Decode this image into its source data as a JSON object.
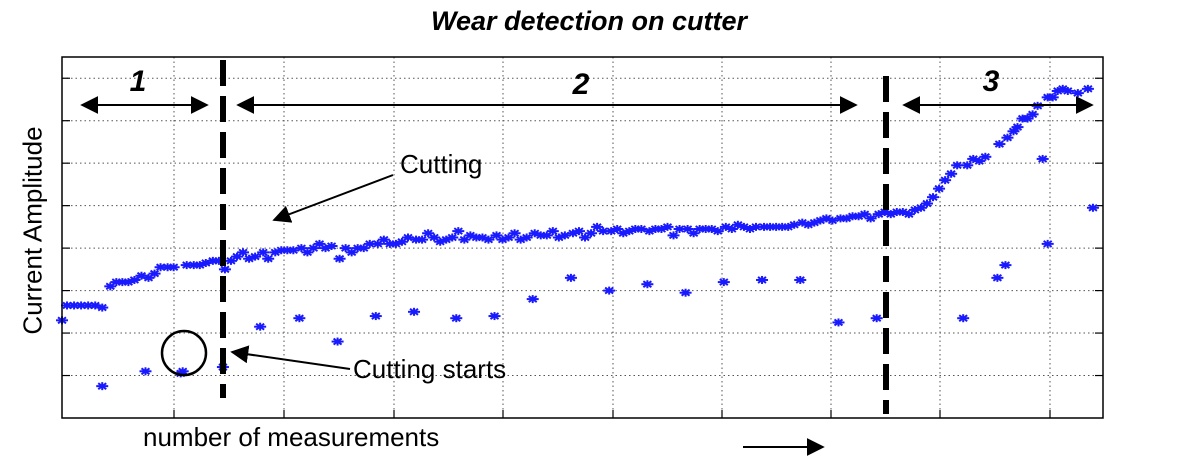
{
  "chart_data": {
    "type": "scatter",
    "title": "Wear detection on cutter",
    "xlabel": "number of measurements",
    "ylabel": "Current Amplitude",
    "xlim": [
      0,
      1035
    ],
    "ylim": [
      0,
      8.5
    ],
    "grid": true,
    "marker_color": "#1a1aff",
    "series": [
      {
        "values": [
          [
            0,
            2.3
          ],
          [
            5,
            2.65
          ],
          [
            12,
            2.65
          ],
          [
            19,
            2.65
          ],
          [
            26,
            2.65
          ],
          [
            33,
            2.65
          ],
          [
            40,
            2.6
          ],
          [
            40,
            0.75
          ],
          [
            48,
            3.1
          ],
          [
            54,
            3.2
          ],
          [
            60,
            3.2
          ],
          [
            66,
            3.2
          ],
          [
            72,
            3.25
          ],
          [
            79,
            3.35
          ],
          [
            83,
            1.1
          ],
          [
            86,
            3.3
          ],
          [
            92,
            3.4
          ],
          [
            98,
            3.55
          ],
          [
            105,
            3.55
          ],
          [
            111,
            3.55
          ],
          [
            118,
            1.05
          ],
          [
            120,
            1.1
          ],
          [
            124,
            3.6
          ],
          [
            131,
            3.6
          ],
          [
            137,
            3.6
          ],
          [
            143,
            3.65
          ],
          [
            150,
            3.7
          ],
          [
            156,
            3.7
          ],
          [
            160,
            1.2
          ],
          [
            162,
            3.5
          ],
          [
            168,
            3.7
          ],
          [
            174,
            3.8
          ],
          [
            180,
            3.9
          ],
          [
            186,
            3.75
          ],
          [
            192,
            3.8
          ],
          [
            197,
            2.15
          ],
          [
            200,
            3.9
          ],
          [
            205,
            3.75
          ],
          [
            212,
            3.9
          ],
          [
            218,
            3.95
          ],
          [
            224,
            3.95
          ],
          [
            230,
            3.95
          ],
          [
            236,
            2.35
          ],
          [
            238,
            4.0
          ],
          [
            244,
            3.9
          ],
          [
            250,
            4.0
          ],
          [
            256,
            4.1
          ],
          [
            262,
            4.0
          ],
          [
            268,
            4.05
          ],
          [
            274,
            1.8
          ],
          [
            276,
            3.75
          ],
          [
            282,
            4.0
          ],
          [
            288,
            3.9
          ],
          [
            294,
            4.0
          ],
          [
            300,
            4.0
          ],
          [
            306,
            4.1
          ],
          [
            312,
            2.4
          ],
          [
            314,
            4.1
          ],
          [
            320,
            4.2
          ],
          [
            326,
            4.1
          ],
          [
            332,
            4.1
          ],
          [
            338,
            4.15
          ],
          [
            344,
            4.25
          ],
          [
            350,
            2.5
          ],
          [
            352,
            4.2
          ],
          [
            358,
            4.2
          ],
          [
            364,
            4.35
          ],
          [
            370,
            4.25
          ],
          [
            376,
            4.15
          ],
          [
            382,
            4.2
          ],
          [
            388,
            4.25
          ],
          [
            392,
            2.35
          ],
          [
            394,
            4.4
          ],
          [
            400,
            4.2
          ],
          [
            406,
            4.3
          ],
          [
            412,
            4.25
          ],
          [
            418,
            4.25
          ],
          [
            424,
            4.2
          ],
          [
            430,
            2.4
          ],
          [
            432,
            4.3
          ],
          [
            438,
            4.2
          ],
          [
            444,
            4.25
          ],
          [
            450,
            4.35
          ],
          [
            456,
            4.2
          ],
          [
            462,
            4.25
          ],
          [
            468,
            2.8
          ],
          [
            470,
            4.35
          ],
          [
            476,
            4.3
          ],
          [
            482,
            4.3
          ],
          [
            488,
            4.4
          ],
          [
            494,
            4.25
          ],
          [
            500,
            4.3
          ],
          [
            506,
            3.3
          ],
          [
            508,
            4.35
          ],
          [
            514,
            4.4
          ],
          [
            520,
            4.25
          ],
          [
            526,
            4.35
          ],
          [
            532,
            4.5
          ],
          [
            538,
            4.4
          ],
          [
            544,
            3.0
          ],
          [
            546,
            4.4
          ],
          [
            552,
            4.45
          ],
          [
            558,
            4.35
          ],
          [
            564,
            4.4
          ],
          [
            570,
            4.45
          ],
          [
            576,
            4.45
          ],
          [
            582,
            3.15
          ],
          [
            584,
            4.4
          ],
          [
            590,
            4.45
          ],
          [
            596,
            4.45
          ],
          [
            602,
            4.5
          ],
          [
            608,
            4.3
          ],
          [
            614,
            4.45
          ],
          [
            620,
            2.95
          ],
          [
            622,
            4.45
          ],
          [
            628,
            4.35
          ],
          [
            634,
            4.45
          ],
          [
            640,
            4.45
          ],
          [
            646,
            4.45
          ],
          [
            652,
            4.4
          ],
          [
            658,
            3.2
          ],
          [
            660,
            4.5
          ],
          [
            666,
            4.45
          ],
          [
            672,
            4.55
          ],
          [
            678,
            4.5
          ],
          [
            684,
            4.45
          ],
          [
            690,
            4.5
          ],
          [
            696,
            3.25
          ],
          [
            698,
            4.5
          ],
          [
            704,
            4.5
          ],
          [
            710,
            4.5
          ],
          [
            716,
            4.5
          ],
          [
            722,
            4.5
          ],
          [
            728,
            4.55
          ],
          [
            734,
            3.25
          ],
          [
            736,
            4.6
          ],
          [
            742,
            4.55
          ],
          [
            748,
            4.6
          ],
          [
            754,
            4.65
          ],
          [
            760,
            4.7
          ],
          [
            766,
            4.65
          ],
          [
            772,
            2.25
          ],
          [
            774,
            4.7
          ],
          [
            780,
            4.7
          ],
          [
            786,
            4.75
          ],
          [
            792,
            4.75
          ],
          [
            798,
            4.8
          ],
          [
            804,
            4.7
          ],
          [
            810,
            2.35
          ],
          [
            812,
            4.8
          ],
          [
            818,
            4.85
          ],
          [
            824,
            4.8
          ],
          [
            830,
            4.85
          ],
          [
            836,
            4.85
          ],
          [
            842,
            4.8
          ],
          [
            848,
            4.9
          ],
          [
            854,
            4.95
          ],
          [
            860,
            5.05
          ],
          [
            866,
            5.2
          ],
          [
            872,
            5.4
          ],
          [
            878,
            5.6
          ],
          [
            884,
            5.75
          ],
          [
            890,
            5.95
          ],
          [
            896,
            2.35
          ],
          [
            900,
            5.95
          ],
          [
            906,
            6.1
          ],
          [
            912,
            6.05
          ],
          [
            918,
            6.15
          ],
          [
            930,
            3.3
          ],
          [
            932,
            6.45
          ],
          [
            938,
            3.6
          ],
          [
            940,
            6.6
          ],
          [
            946,
            6.75
          ],
          [
            950,
            6.85
          ],
          [
            955,
            7.05
          ],
          [
            960,
            7.05
          ],
          [
            965,
            7.15
          ],
          [
            970,
            7.35
          ],
          [
            975,
            6.1
          ],
          [
            980,
            4.1
          ],
          [
            980,
            7.55
          ],
          [
            985,
            7.55
          ],
          [
            990,
            7.7
          ],
          [
            995,
            7.75
          ],
          [
            1000,
            7.7
          ],
          [
            1010,
            7.65
          ],
          [
            1020,
            7.75
          ],
          [
            1025,
            4.95
          ]
        ]
      }
    ],
    "annotations": {
      "segment_labels": [
        "1",
        "2",
        "3"
      ],
      "cutting_label": "Cutting",
      "cutting_starts_label": "Cutting starts"
    }
  }
}
